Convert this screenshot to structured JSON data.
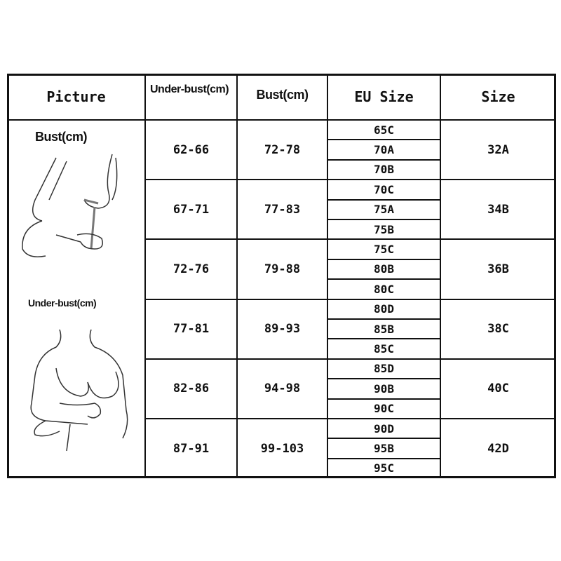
{
  "headers": {
    "picture": "Picture",
    "underbust": "Under-bust(cm)",
    "bust": "Bust(cm)",
    "eu_size": "EU Size",
    "size": "Size"
  },
  "picture_labels": {
    "bust": "Bust(cm)",
    "underbust": "Under-bust(cm)"
  },
  "rows": [
    {
      "underbust": "62-66",
      "bust": "72-78",
      "eu": [
        "65C",
        "70A",
        "70B"
      ],
      "size": "32A"
    },
    {
      "underbust": "67-71",
      "bust": "77-83",
      "eu": [
        "70C",
        "75A",
        "75B"
      ],
      "size": "34B"
    },
    {
      "underbust": "72-76",
      "bust": "79-88",
      "eu": [
        "75C",
        "80B",
        "80C"
      ],
      "size": "36B"
    },
    {
      "underbust": "77-81",
      "bust": "89-93",
      "eu": [
        "80D",
        "85B",
        "85C"
      ],
      "size": "38C"
    },
    {
      "underbust": "82-86",
      "bust": "94-98",
      "eu": [
        "85D",
        "90B",
        "90C"
      ],
      "size": "40C"
    },
    {
      "underbust": "87-91",
      "bust": "99-103",
      "eu": [
        "90D",
        "95B",
        "95C"
      ],
      "size": "42D"
    }
  ]
}
